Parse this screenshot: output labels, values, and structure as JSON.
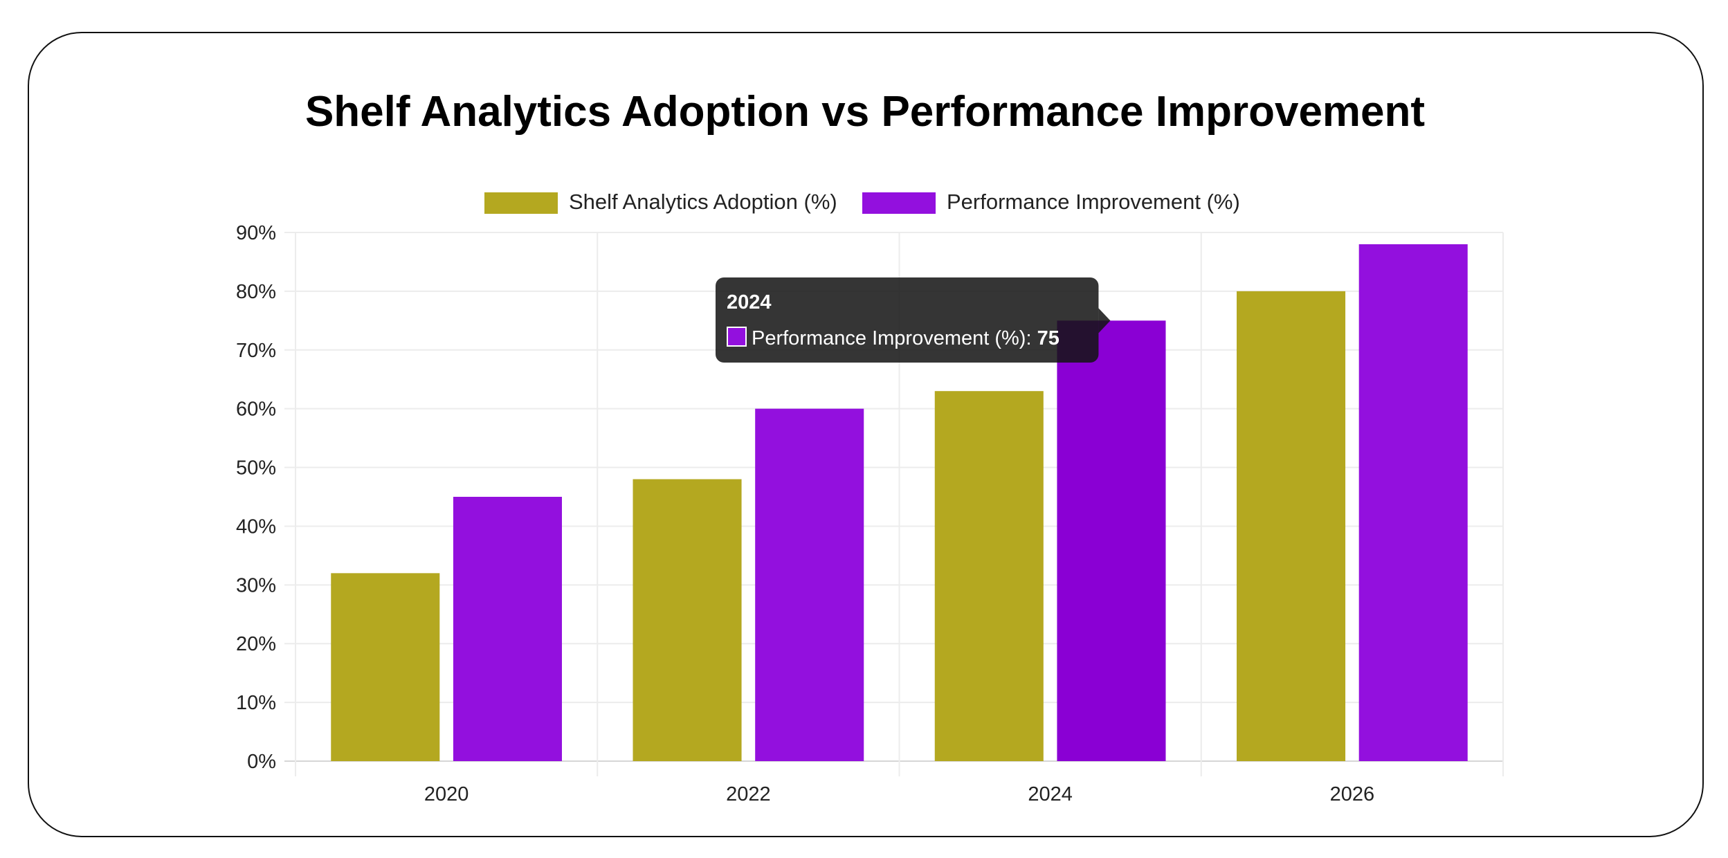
{
  "chart_data": {
    "type": "bar",
    "title": "Shelf Analytics Adoption vs Performance Improvement",
    "categories": [
      "2020",
      "2022",
      "2024",
      "2026"
    ],
    "series": [
      {
        "name": "Shelf Analytics Adoption (%)",
        "color": "#b4a820",
        "values": [
          32,
          48,
          63,
          80
        ]
      },
      {
        "name": "Performance Improvement (%)",
        "color": "#9310de",
        "values": [
          45,
          60,
          75,
          88
        ]
      }
    ],
    "ylim": [
      0,
      90
    ],
    "yticks": [
      0,
      10,
      20,
      30,
      40,
      50,
      60,
      70,
      80,
      90
    ],
    "ytick_labels": [
      "0%",
      "10%",
      "20%",
      "30%",
      "40%",
      "50%",
      "60%",
      "70%",
      "80%",
      "90%"
    ],
    "xlabel": "",
    "ylabel": "",
    "grid": true,
    "legend_position": "top-center",
    "tooltip": {
      "title": "2024",
      "series_label": "Performance Improvement (%):",
      "value": "75",
      "category_index": 2,
      "series_index": 1
    }
  }
}
